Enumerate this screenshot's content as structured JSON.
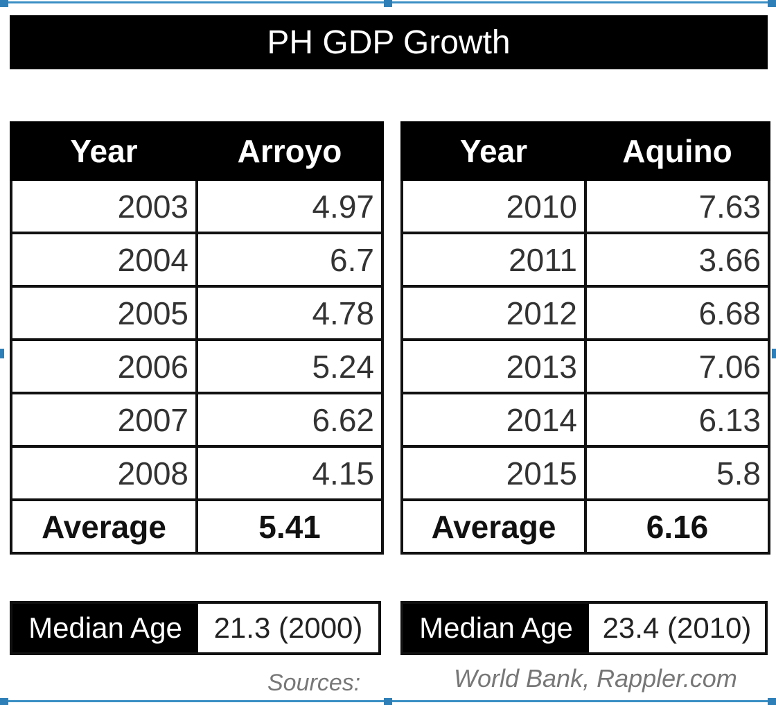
{
  "title": "PH GDP Growth",
  "tables": [
    {
      "header": [
        "Year",
        "Arroyo"
      ],
      "rows": [
        [
          "2003",
          "4.97"
        ],
        [
          "2004",
          "6.7"
        ],
        [
          "2005",
          "4.78"
        ],
        [
          "2006",
          "5.24"
        ],
        [
          "2007",
          "6.62"
        ],
        [
          "2008",
          "4.15"
        ]
      ],
      "average_label": "Average",
      "average_value": "5.41",
      "median_label": "Median Age",
      "median_value": "21.3 (2000)"
    },
    {
      "header": [
        "Year",
        "Aquino"
      ],
      "rows": [
        [
          "2010",
          "7.63"
        ],
        [
          "2011",
          "3.66"
        ],
        [
          "2012",
          "6.68"
        ],
        [
          "2013",
          "7.06"
        ],
        [
          "2014",
          "6.13"
        ],
        [
          "2015",
          "5.8"
        ]
      ],
      "average_label": "Average",
      "average_value": "6.16",
      "median_label": "Median Age",
      "median_value": "23.4 (2010)"
    }
  ],
  "sources_label": "Sources:",
  "sources": "World Bank, Rappler.com",
  "colors": {
    "header_bg": "#000000",
    "header_text": "#ffffff",
    "frame_accent": "#3a8fc4"
  }
}
